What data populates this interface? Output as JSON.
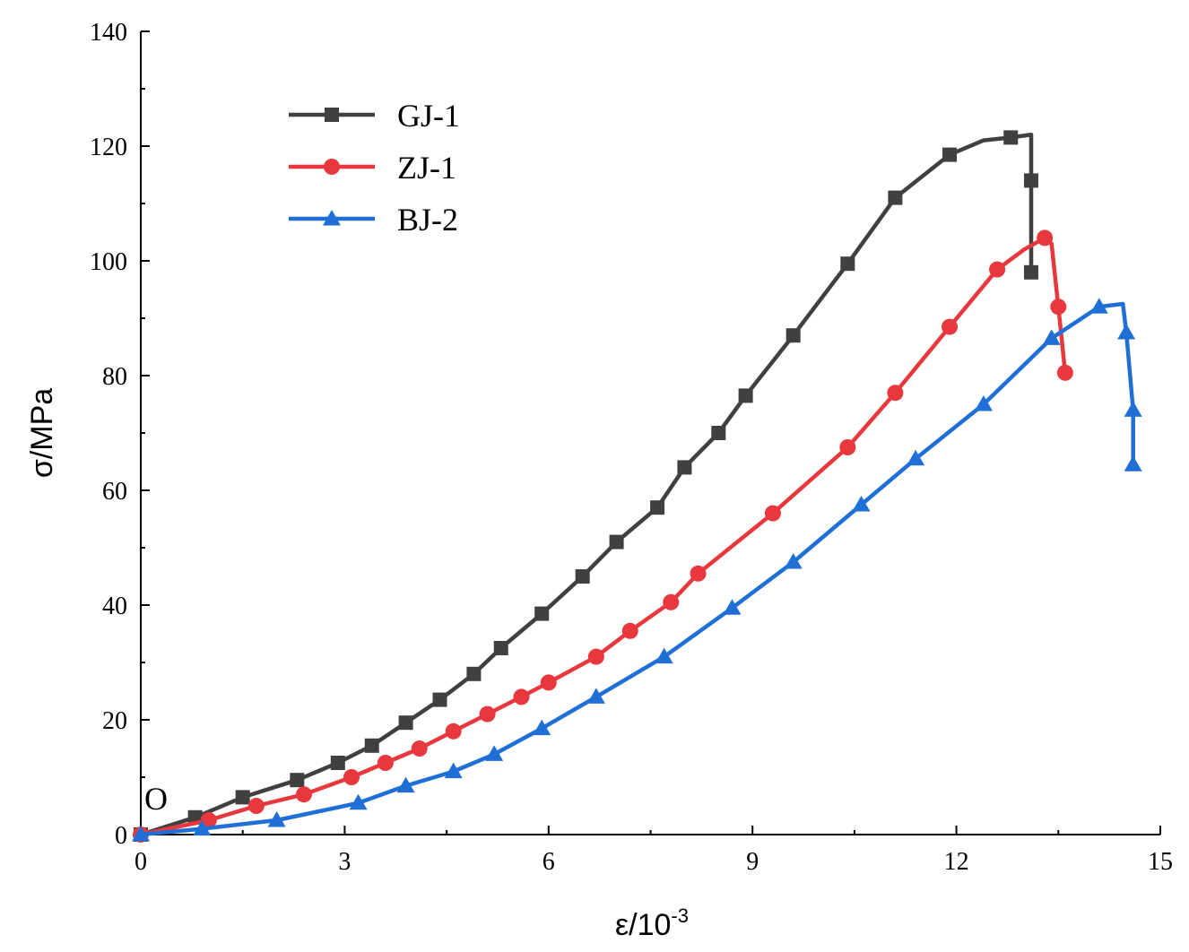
{
  "chart_data": {
    "type": "line",
    "title": "",
    "xlabel": "ε/10",
    "xlabel_sup": "-3",
    "ylabel": "σ/MPa",
    "origin_label": "O",
    "xlim": [
      0,
      15
    ],
    "ylim": [
      0,
      140
    ],
    "xticks": [
      0,
      3,
      6,
      9,
      12,
      15
    ],
    "yticks": [
      0,
      20,
      40,
      60,
      80,
      100,
      120,
      140
    ],
    "grid": false,
    "legend_position": "top-left",
    "series": [
      {
        "name": "GJ-1",
        "color": "#404040",
        "marker": "square",
        "x": [
          0.0,
          0.8,
          1.5,
          2.3,
          2.9,
          3.4,
          3.9,
          4.4,
          4.9,
          5.3,
          5.9,
          6.5,
          7.0,
          7.6,
          8.0,
          8.5,
          8.9,
          9.6,
          10.4,
          11.1,
          11.9,
          12.8,
          13.1,
          13.1
        ],
        "y": [
          0,
          3,
          6.5,
          9.5,
          12.5,
          15.5,
          19.5,
          23.5,
          28,
          32.5,
          38.5,
          45,
          51,
          57,
          64,
          70,
          76.5,
          87,
          99.5,
          111,
          118.5,
          121.5,
          114,
          98
        ],
        "line": {
          "x": [
            0,
            0.8,
            1.5,
            2.3,
            2.9,
            3.4,
            3.9,
            4.4,
            4.9,
            5.3,
            5.9,
            6.5,
            7.0,
            7.6,
            8.0,
            8.5,
            8.9,
            9.6,
            10.4,
            11.1,
            11.9,
            12.4,
            12.8,
            13.1,
            13.1,
            13.1
          ],
          "y": [
            0,
            3,
            6.5,
            9.5,
            12.5,
            15.5,
            19.5,
            23.5,
            28,
            32.5,
            38.5,
            45,
            51,
            57,
            64,
            70,
            76.5,
            87,
            99.5,
            111,
            118.5,
            121,
            121.5,
            122,
            114,
            98
          ]
        }
      },
      {
        "name": "ZJ-1",
        "color": "#e8383d",
        "marker": "circle",
        "x": [
          0.0,
          1.0,
          1.7,
          2.4,
          3.1,
          3.6,
          4.1,
          4.6,
          5.1,
          5.6,
          6.0,
          6.7,
          7.2,
          7.8,
          8.2,
          9.3,
          10.4,
          11.1,
          11.9,
          12.6,
          13.3,
          13.5,
          13.6
        ],
        "y": [
          0,
          2.5,
          5,
          7,
          10,
          12.5,
          15,
          18,
          21,
          24,
          26.5,
          31,
          35.5,
          40.5,
          45.5,
          56,
          67.5,
          77,
          88.5,
          98.5,
          104,
          92,
          80.5
        ],
        "line": {
          "x": [
            0,
            1.0,
            1.7,
            2.4,
            3.1,
            3.6,
            4.1,
            4.6,
            5.1,
            5.6,
            6.0,
            6.7,
            7.2,
            7.8,
            8.2,
            9.3,
            10.4,
            11.1,
            11.9,
            12.6,
            13.0,
            13.3,
            13.4,
            13.5,
            13.6
          ],
          "y": [
            0,
            2.5,
            5,
            7,
            10,
            12.5,
            15,
            18,
            21,
            24,
            26.5,
            31,
            35.5,
            40.5,
            45.5,
            56,
            67.5,
            77,
            88.5,
            98.5,
            102,
            104,
            103,
            92,
            80.5
          ]
        }
      },
      {
        "name": "BJ-2",
        "color": "#1f6fd6",
        "marker": "triangle",
        "x": [
          0.0,
          0.9,
          2.0,
          3.2,
          3.9,
          4.6,
          5.2,
          5.9,
          6.7,
          7.7,
          8.7,
          9.6,
          10.6,
          11.4,
          12.4,
          13.4,
          14.1,
          14.5,
          14.6,
          14.6
        ],
        "y": [
          0,
          1,
          2.5,
          5.5,
          8.5,
          11,
          14,
          18.5,
          24,
          31,
          39.5,
          47.5,
          57.5,
          65.5,
          75,
          86.5,
          92,
          87.5,
          74,
          64.5
        ],
        "line": {
          "x": [
            0,
            0.9,
            2.0,
            3.2,
            3.9,
            4.6,
            5.2,
            5.9,
            6.7,
            7.7,
            8.7,
            9.6,
            10.6,
            11.4,
            12.4,
            13.4,
            14.1,
            14.45,
            14.5,
            14.6,
            14.6
          ],
          "y": [
            0,
            1,
            2.5,
            5.5,
            8.5,
            11,
            14,
            18.5,
            24,
            31,
            39.5,
            47.5,
            57.5,
            65.5,
            75,
            86.5,
            92,
            92.5,
            87.5,
            74,
            64.5
          ]
        }
      }
    ]
  }
}
